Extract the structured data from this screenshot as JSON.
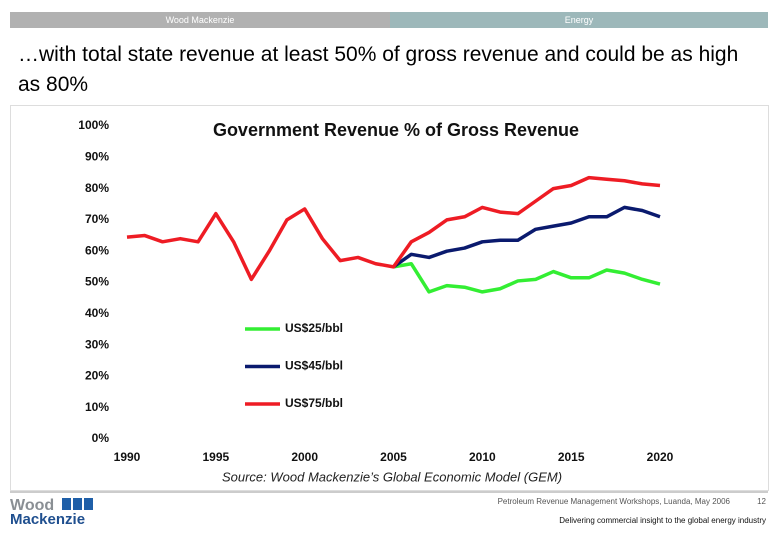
{
  "header": {
    "left": "Wood Mackenzie",
    "right": "Energy"
  },
  "slide_title": "…with total state revenue at least 50% of gross revenue and could be as high as 80%",
  "chart_data": {
    "type": "line",
    "title": "Government Revenue % of Gross Revenue",
    "x": [
      1990,
      1991,
      1992,
      1993,
      1994,
      1995,
      1996,
      1997,
      1998,
      1999,
      2000,
      2001,
      2002,
      2003,
      2004,
      2005,
      2006,
      2007,
      2008,
      2009,
      2010,
      2011,
      2012,
      2013,
      2014,
      2015,
      2016,
      2017,
      2018,
      2019,
      2020
    ],
    "series": [
      {
        "name": "US$25/bbl",
        "color": "#33ee33",
        "values": [
          null,
          null,
          null,
          null,
          null,
          null,
          null,
          null,
          null,
          null,
          null,
          null,
          null,
          null,
          null,
          55,
          56,
          47,
          49,
          48.5,
          47,
          48,
          50.5,
          51,
          53.5,
          51.5,
          51.5,
          54,
          53,
          51,
          49.5
        ]
      },
      {
        "name": "US$45/bbl",
        "color": "#0a1a6e",
        "values": [
          null,
          null,
          null,
          null,
          null,
          null,
          null,
          null,
          null,
          null,
          null,
          null,
          null,
          null,
          null,
          55,
          59,
          58,
          60,
          61,
          63,
          63.5,
          63.5,
          67,
          68,
          69,
          71,
          71,
          74,
          73,
          71
        ]
      },
      {
        "name": "US$75/bbl",
        "color": "#ee1c24",
        "values": [
          64.5,
          65,
          63,
          64,
          63,
          72,
          63,
          51,
          60,
          70,
          73.5,
          64,
          57,
          58,
          56,
          55,
          63,
          66,
          70,
          71,
          74,
          72.5,
          72,
          76,
          80,
          81,
          83.5,
          83,
          82.5,
          81.5,
          81
        ]
      }
    ],
    "xlim": [
      1990,
      2020
    ],
    "xticks": [
      1990,
      1995,
      2000,
      2005,
      2010,
      2015,
      2020
    ],
    "ylim": [
      0,
      100
    ],
    "yticks": [
      {
        "value": 0,
        "label": "0%"
      },
      {
        "value": 10,
        "label": "10%"
      },
      {
        "value": 20,
        "label": "20%"
      },
      {
        "value": 30,
        "label": "30%"
      },
      {
        "value": 40,
        "label": "40%"
      },
      {
        "value": 50,
        "label": "50%"
      },
      {
        "value": 60,
        "label": "60%"
      },
      {
        "value": 70,
        "label": "70%"
      },
      {
        "value": 80,
        "label": "80%"
      },
      {
        "value": 90,
        "label": "90%"
      },
      {
        "value": 100,
        "label": "100%"
      }
    ],
    "grid": false,
    "legend": "lower-left",
    "source": "Source: Wood Mackenzie’s Global Economic Model (GEM)"
  },
  "footer": {
    "logo_line1": "Wood",
    "logo_line2": "Mackenzie",
    "event": "Petroleum Revenue Management Workshops, Luanda, May 2006",
    "page": "12",
    "tagline": "Delivering commercial insight to the global energy industry"
  }
}
